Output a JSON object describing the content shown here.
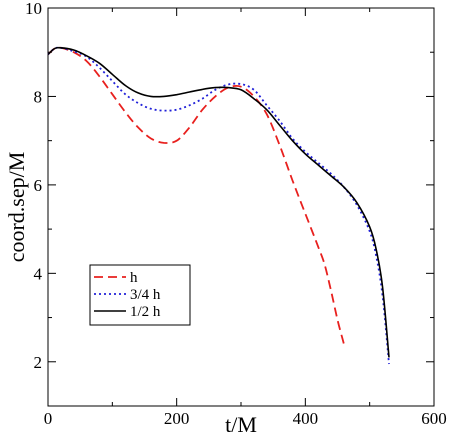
{
  "chart_data": {
    "type": "line",
    "title": "",
    "xlabel": "t/M",
    "ylabel": "coord.sep/M",
    "xlim": [
      0,
      600
    ],
    "ylim": [
      1,
      10
    ],
    "xticks": [
      0,
      200,
      400,
      600
    ],
    "yticks": [
      2,
      4,
      6,
      8,
      10
    ],
    "xtick_labels": [
      "0",
      "200",
      "400",
      "600"
    ],
    "ytick_labels": [
      "2",
      "4",
      "6",
      "8",
      "10"
    ],
    "grid": false,
    "legend_position": "lower-left",
    "series": [
      {
        "name": "h",
        "color": "#e8201e",
        "style": "dashed",
        "x": [
          0,
          10,
          20,
          40,
          60,
          80,
          100,
          120,
          140,
          160,
          180,
          200,
          220,
          240,
          260,
          280,
          300,
          320,
          340,
          360,
          380,
          400,
          420,
          430,
          440,
          450,
          460
        ],
        "y": [
          8.95,
          9.08,
          9.1,
          9.0,
          8.8,
          8.45,
          8.05,
          7.65,
          7.3,
          7.05,
          6.95,
          7.0,
          7.3,
          7.7,
          8.0,
          8.2,
          8.22,
          8.0,
          7.6,
          6.9,
          6.1,
          5.35,
          4.6,
          4.2,
          3.6,
          2.95,
          2.4
        ]
      },
      {
        "name": "3/4 h",
        "color": "#2020d8",
        "style": "dotted",
        "x": [
          0,
          10,
          20,
          40,
          60,
          80,
          100,
          120,
          140,
          160,
          180,
          200,
          220,
          240,
          260,
          280,
          300,
          320,
          340,
          360,
          380,
          400,
          420,
          440,
          460,
          480,
          500,
          510,
          520,
          530
        ],
        "y": [
          8.95,
          9.08,
          9.1,
          9.02,
          8.9,
          8.65,
          8.35,
          8.05,
          7.85,
          7.72,
          7.68,
          7.7,
          7.8,
          7.95,
          8.15,
          8.27,
          8.28,
          8.15,
          7.8,
          7.45,
          7.05,
          6.75,
          6.5,
          6.25,
          5.95,
          5.55,
          4.95,
          4.4,
          3.5,
          1.95
        ]
      },
      {
        "name": "1/2 h",
        "color": "#000000",
        "style": "solid",
        "x": [
          0,
          10,
          20,
          40,
          60,
          80,
          100,
          120,
          140,
          160,
          180,
          200,
          220,
          240,
          260,
          280,
          300,
          320,
          340,
          360,
          380,
          400,
          420,
          440,
          460,
          480,
          500,
          510,
          520,
          530
        ],
        "y": [
          8.95,
          9.08,
          9.1,
          9.05,
          8.92,
          8.75,
          8.5,
          8.25,
          8.08,
          8.0,
          8.0,
          8.04,
          8.1,
          8.16,
          8.2,
          8.2,
          8.15,
          7.95,
          7.7,
          7.35,
          7.0,
          6.7,
          6.45,
          6.2,
          5.95,
          5.6,
          5.05,
          4.55,
          3.7,
          2.1
        ]
      }
    ]
  }
}
